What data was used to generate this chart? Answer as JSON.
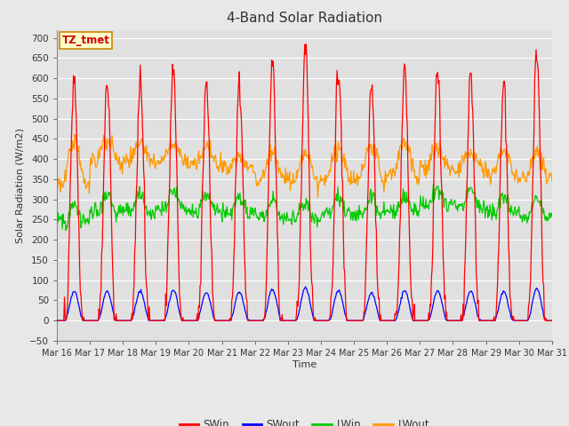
{
  "title": "4-Band Solar Radiation",
  "xlabel": "Time",
  "ylabel": "Solar Radiation (W/m2)",
  "ylim": [
    -50,
    720
  ],
  "yticks": [
    -50,
    0,
    50,
    100,
    150,
    200,
    250,
    300,
    350,
    400,
    450,
    500,
    550,
    600,
    650,
    700
  ],
  "background_color": "#e8e8e8",
  "plot_bg_color": "#e0e0e0",
  "grid_color": "#ffffff",
  "annotation_text": "TZ_tmet",
  "annotation_bg": "#ffffcc",
  "annotation_border": "#cc8800",
  "legend_entries": [
    "SWin",
    "SWout",
    "LWin",
    "LWout"
  ],
  "legend_colors": [
    "#ff0000",
    "#0000ff",
    "#00cc00",
    "#ff9900"
  ],
  "swin_color": "#ff0000",
  "swout_color": "#0000ff",
  "lwin_color": "#00cc00",
  "lwout_color": "#ff9900",
  "n_days": 15,
  "start_day": 16,
  "title_fontsize": 11,
  "swin_peaks": [
    600,
    600,
    600,
    630,
    585,
    590,
    645,
    690,
    620,
    575,
    620,
    620,
    610,
    600,
    660
  ],
  "lwin_base": [
    247,
    270,
    270,
    280,
    270,
    265,
    260,
    255,
    265,
    265,
    270,
    290,
    285,
    270,
    258
  ],
  "lwout_base": [
    335,
    390,
    395,
    390,
    385,
    375,
    350,
    345,
    350,
    350,
    360,
    375,
    370,
    360,
    350
  ],
  "lwout_day_peak": [
    440,
    450,
    435,
    435,
    430,
    405,
    410,
    415,
    430,
    435,
    435,
    420,
    415,
    420,
    415
  ]
}
